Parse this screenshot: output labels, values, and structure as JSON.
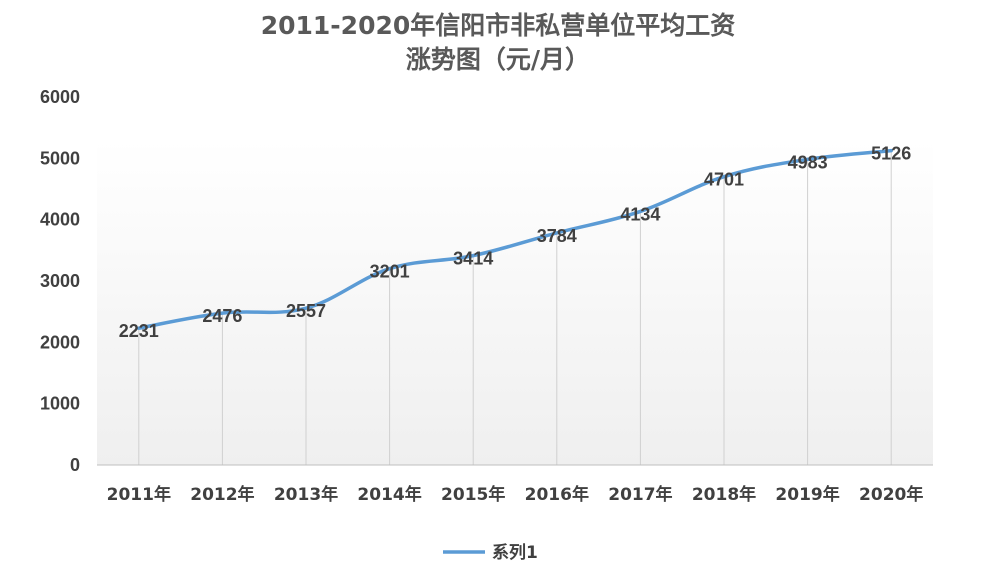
{
  "chart_data": {
    "type": "line",
    "title_lines": [
      "2011-2020年信阳市非私营单位平均工资",
      "涨势图（元/月）"
    ],
    "categories": [
      "2011年",
      "2012年",
      "2013年",
      "2014年",
      "2015年",
      "2016年",
      "2017年",
      "2018年",
      "2019年",
      "2020年"
    ],
    "series": [
      {
        "name": "系列1",
        "values": [
          2231,
          2476,
          2557,
          3201,
          3414,
          3784,
          4134,
          4701,
          4983,
          5126
        ],
        "color": "#5b9bd5"
      }
    ],
    "ylim": [
      0,
      6000
    ],
    "yticks": [
      "0",
      "1000",
      "2000",
      "3000",
      "4000",
      "5000",
      "6000"
    ],
    "grid": "vertical drop lines",
    "smooth": true,
    "data_labels": true,
    "legend": "bottom-center"
  }
}
